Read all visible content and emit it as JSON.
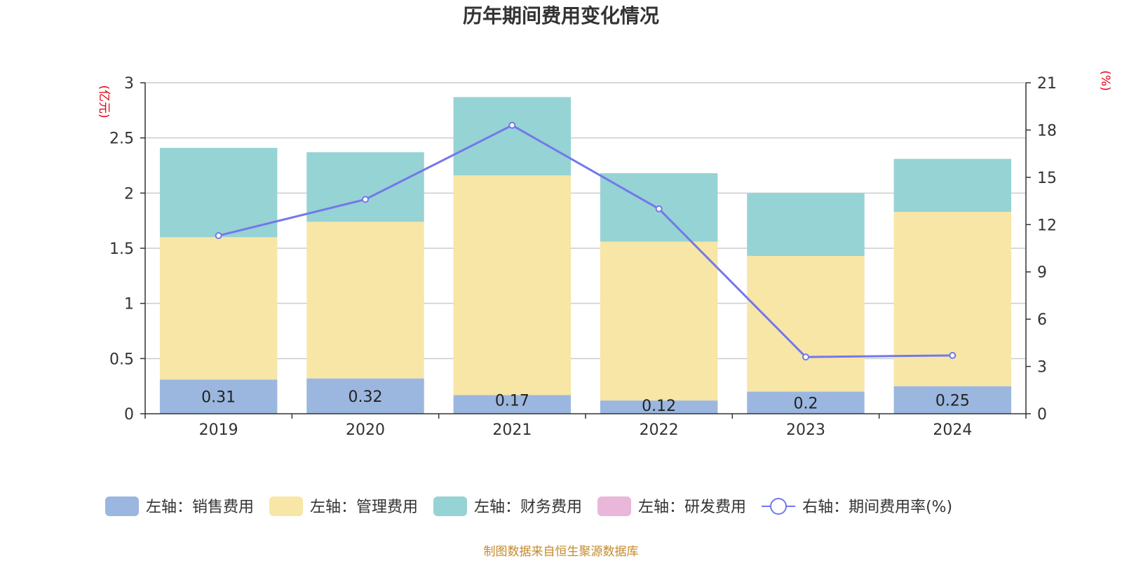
{
  "chart_data": {
    "type": "bar",
    "stacked": true,
    "title": "历年期间费用变化情况",
    "categories": [
      "2019",
      "2020",
      "2021",
      "2022",
      "2023",
      "2024"
    ],
    "series": [
      {
        "name": "左轴：销售费用",
        "axis": "left",
        "type": "bar",
        "color": "#9bb7e0",
        "values": [
          0.31,
          0.32,
          0.17,
          0.12,
          0.2,
          0.25
        ],
        "labels": [
          "0.31",
          "0.32",
          "0.17",
          "0.12",
          "0.2",
          "0.25"
        ]
      },
      {
        "name": "左轴：管理费用",
        "axis": "left",
        "type": "bar",
        "color": "#f7e6a6",
        "values": [
          1.29,
          1.42,
          1.99,
          1.44,
          1.23,
          1.58
        ]
      },
      {
        "name": "左轴：财务费用",
        "axis": "left",
        "type": "bar",
        "color": "#96d3d4",
        "values": [
          0.81,
          0.63,
          0.71,
          0.62,
          0.57,
          0.48
        ]
      },
      {
        "name": "左轴：研发费用",
        "axis": "left",
        "type": "bar",
        "color": "#e8b7d9",
        "values": [
          0,
          0,
          0,
          0,
          0,
          0
        ]
      },
      {
        "name": "右轴：期间费用率(%)",
        "axis": "right",
        "type": "line",
        "color": "#7378ea",
        "values": [
          11.3,
          13.6,
          18.3,
          13.0,
          3.6,
          3.7
        ]
      }
    ],
    "y_left": {
      "unit": "(亿元)",
      "ylim": [
        0,
        3
      ],
      "ticks": [
        "0",
        "0.5",
        "1",
        "1.5",
        "2",
        "2.5",
        "3"
      ]
    },
    "y_right": {
      "unit": "(%)",
      "ylim": [
        0,
        21
      ],
      "ticks": [
        "0",
        "3",
        "6",
        "9",
        "12",
        "15",
        "18",
        "21"
      ]
    },
    "grid": true,
    "legend_position": "bottom",
    "source": "制图数据来自恒生聚源数据库"
  }
}
